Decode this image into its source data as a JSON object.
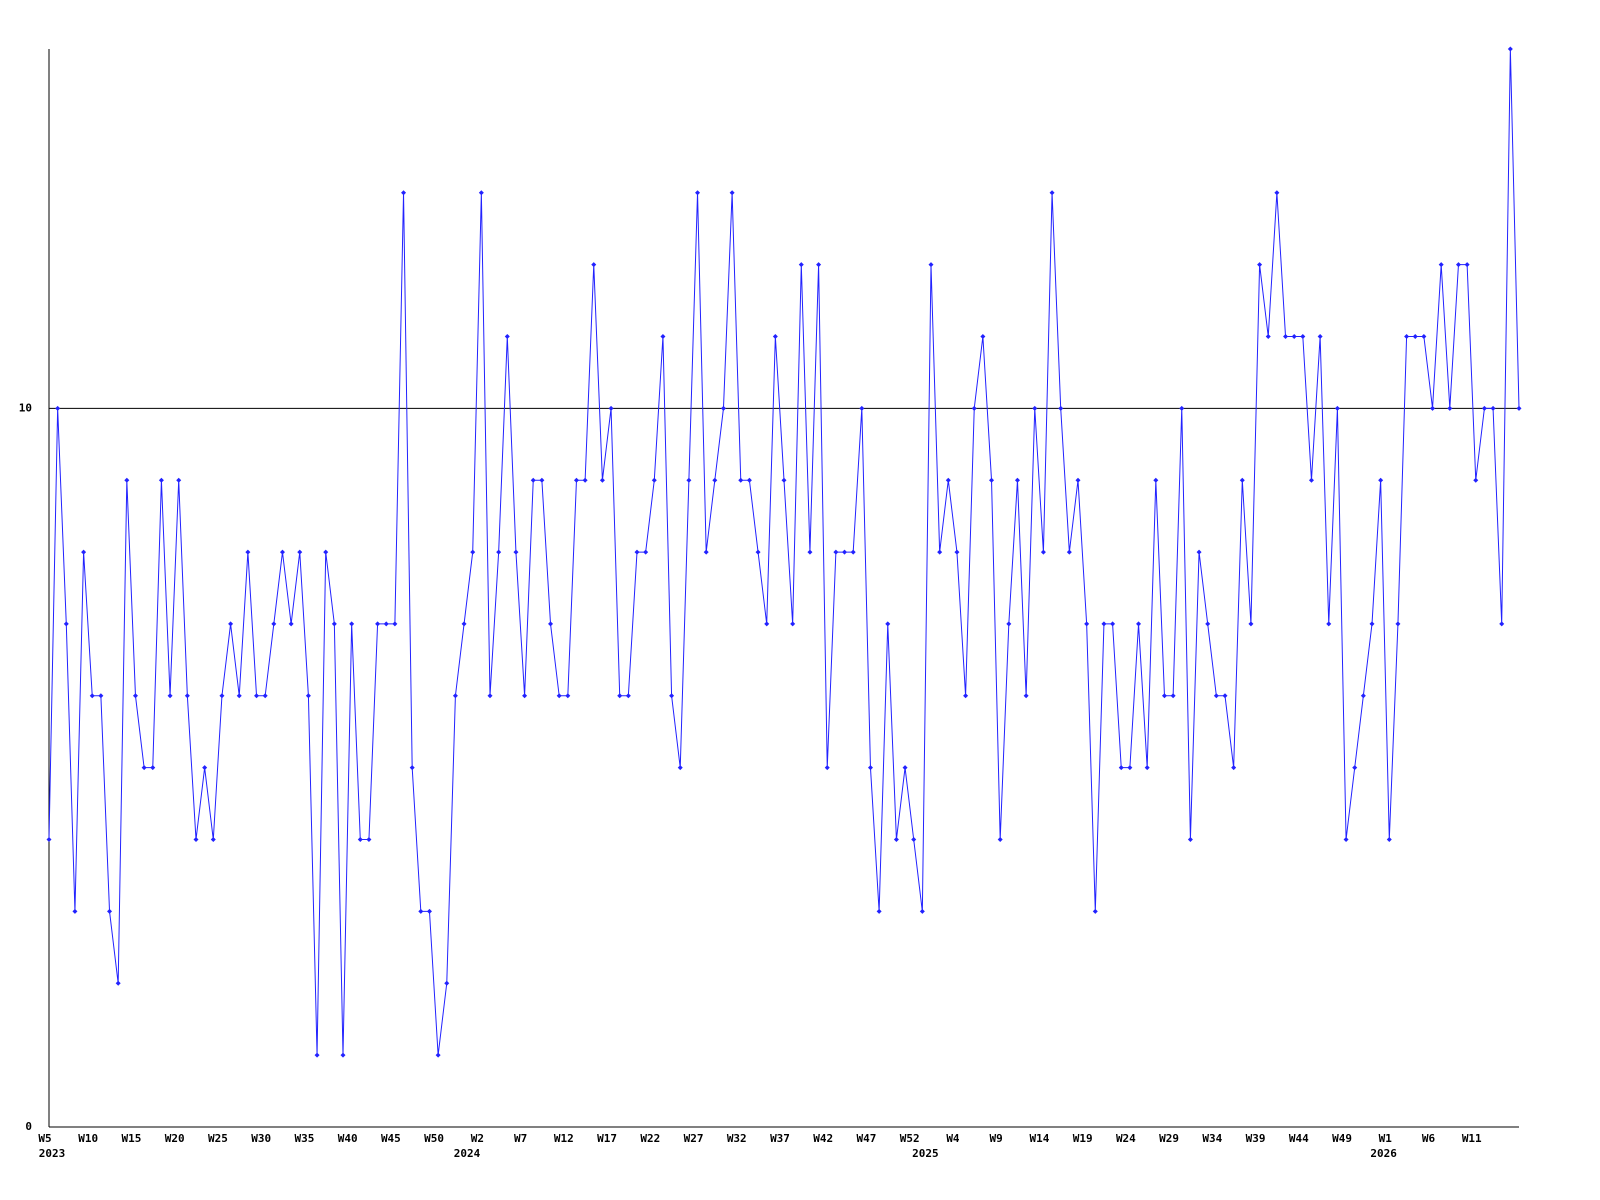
{
  "chart_data": {
    "type": "line",
    "categories": [
      "W5",
      null,
      null,
      null,
      null,
      "W10",
      null,
      null,
      null,
      null,
      "W15",
      null,
      null,
      null,
      null,
      "W20",
      null,
      null,
      null,
      null,
      "W25",
      null,
      null,
      null,
      null,
      "W30",
      null,
      null,
      null,
      null,
      "W35",
      null,
      null,
      null,
      null,
      "W40",
      null,
      null,
      null,
      null,
      "W45",
      null,
      null,
      null,
      null,
      "W50",
      null,
      null,
      null,
      null,
      "W2",
      null,
      null,
      null,
      null,
      "W7",
      null,
      null,
      null,
      null,
      "W12",
      null,
      null,
      null,
      null,
      "W17",
      null,
      null,
      null,
      null,
      "W22",
      null,
      null,
      null,
      null,
      "W27",
      null,
      null,
      null,
      null,
      "W32",
      null,
      null,
      null,
      null,
      "W37",
      null,
      null,
      null,
      null,
      "W42",
      null,
      null,
      null,
      null,
      "W47",
      null,
      null,
      null,
      null,
      "W52",
      null,
      null,
      null,
      null,
      "W4",
      null,
      null,
      null,
      null,
      "W9",
      null,
      null,
      null,
      null,
      "W14",
      null,
      null,
      null,
      null,
      "W19",
      null,
      null,
      null,
      null,
      "W24",
      null,
      null,
      null,
      null,
      "W29",
      null,
      null,
      null,
      null,
      "W34",
      null,
      null,
      null,
      null,
      "W39",
      null,
      null,
      null,
      null,
      "W44",
      null,
      null,
      null,
      null,
      "W49",
      null,
      null,
      null,
      null,
      "W1",
      null,
      null,
      null,
      null,
      "W6",
      null,
      null,
      null,
      null,
      "W11",
      null,
      null,
      null,
      null,
      null
    ],
    "x_group_labels": [
      {
        "index": 0,
        "label": "2023"
      },
      {
        "index": 48,
        "label": "2024"
      },
      {
        "index": 101,
        "label": "2025"
      },
      {
        "index": 154,
        "label": "2026"
      }
    ],
    "values": [
      4,
      10,
      7,
      3,
      8,
      6,
      6,
      3,
      2,
      9,
      6,
      5,
      5,
      9,
      6,
      9,
      6,
      4,
      5,
      4,
      6,
      7,
      6,
      8,
      6,
      6,
      7,
      8,
      7,
      8,
      6,
      1,
      8,
      7,
      1,
      7,
      4,
      4,
      7,
      7,
      7,
      13,
      5,
      3,
      3,
      1,
      2,
      6,
      7,
      8,
      13,
      6,
      8,
      11,
      8,
      6,
      9,
      9,
      7,
      6,
      6,
      9,
      9,
      12,
      9,
      10,
      6,
      6,
      8,
      8,
      9,
      11,
      6,
      5,
      9,
      13,
      8,
      9,
      10,
      13,
      9,
      9,
      8,
      7,
      11,
      9,
      7,
      12,
      8,
      12,
      5,
      8,
      8,
      8,
      10,
      5,
      3,
      7,
      4,
      5,
      4,
      3,
      12,
      8,
      9,
      8,
      6,
      10,
      11,
      9,
      4,
      7,
      9,
      6,
      10,
      8,
      13,
      10,
      8,
      9,
      7,
      3,
      7,
      7,
      5,
      5,
      7,
      5,
      9,
      6,
      6,
      10,
      4,
      8,
      7,
      6,
      6,
      5,
      9,
      7,
      12,
      11,
      13,
      11,
      11,
      11,
      9,
      11,
      7,
      10,
      4,
      5,
      6,
      7,
      9,
      4,
      7,
      11,
      11,
      11,
      10,
      12,
      10,
      12,
      12,
      9,
      10,
      10,
      7,
      15,
      10
    ],
    "color": "#2222ff",
    "ylim": [
      0,
      15
    ],
    "yticks": [
      0,
      10
    ],
    "grid": true
  }
}
